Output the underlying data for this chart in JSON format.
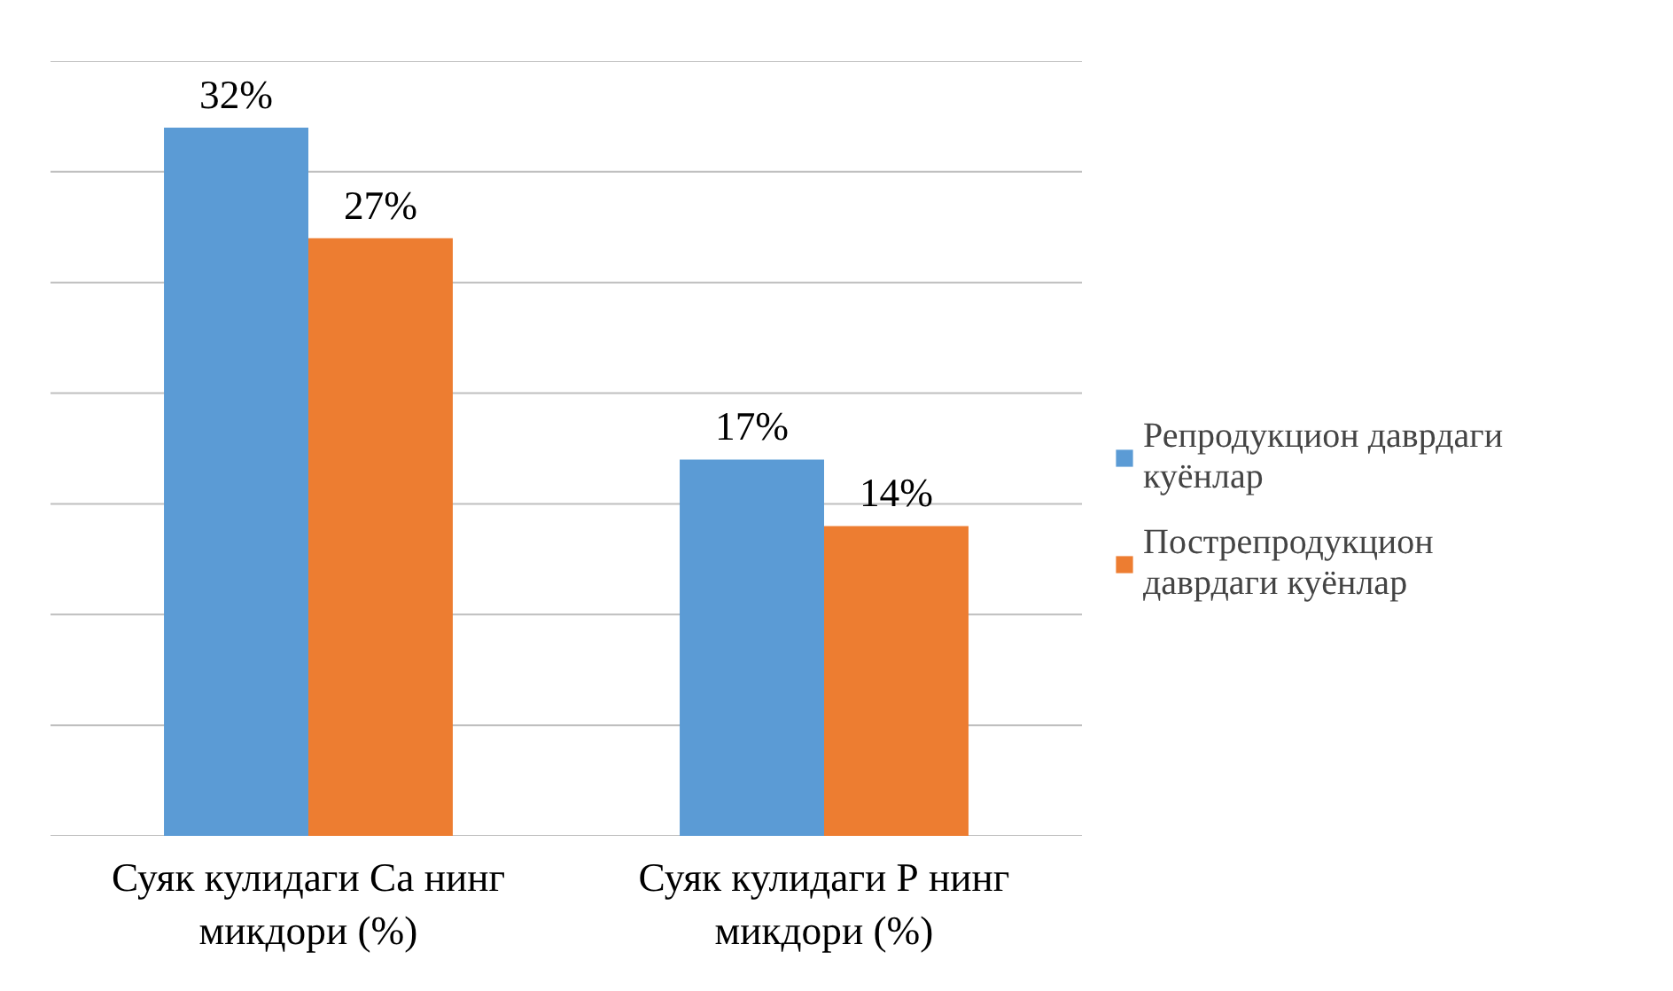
{
  "chart_data": {
    "type": "bar",
    "categories": [
      "Суяк кулидаги Ca нинг микдори (%)",
      "Суяк кулидаги Р нинг микдори (%)"
    ],
    "series": [
      {
        "name": "Репродукцион даврдаги куёнлар",
        "color": "#5b9bd5",
        "values": [
          32,
          17
        ],
        "value_labels": [
          "32%",
          "17%"
        ]
      },
      {
        "name": "Пострепродукцион даврдаги куёнлар",
        "color": "#ed7d31",
        "values": [
          27,
          14
        ],
        "value_labels": [
          "27%",
          "14%"
        ]
      }
    ],
    "ylim": [
      0,
      35
    ],
    "yticks": [
      {
        "value": 0,
        "label": null
      },
      {
        "value": 5,
        "label": null
      },
      {
        "value": 10,
        "label": null
      },
      {
        "value": 15,
        "label": null
      },
      {
        "value": 20,
        "label": null
      },
      {
        "value": 25,
        "label": null
      },
      {
        "value": 30,
        "label": null
      },
      {
        "value": 35,
        "label": null
      }
    ],
    "tick_labels": "x",
    "grid": "y",
    "legend": "right"
  }
}
